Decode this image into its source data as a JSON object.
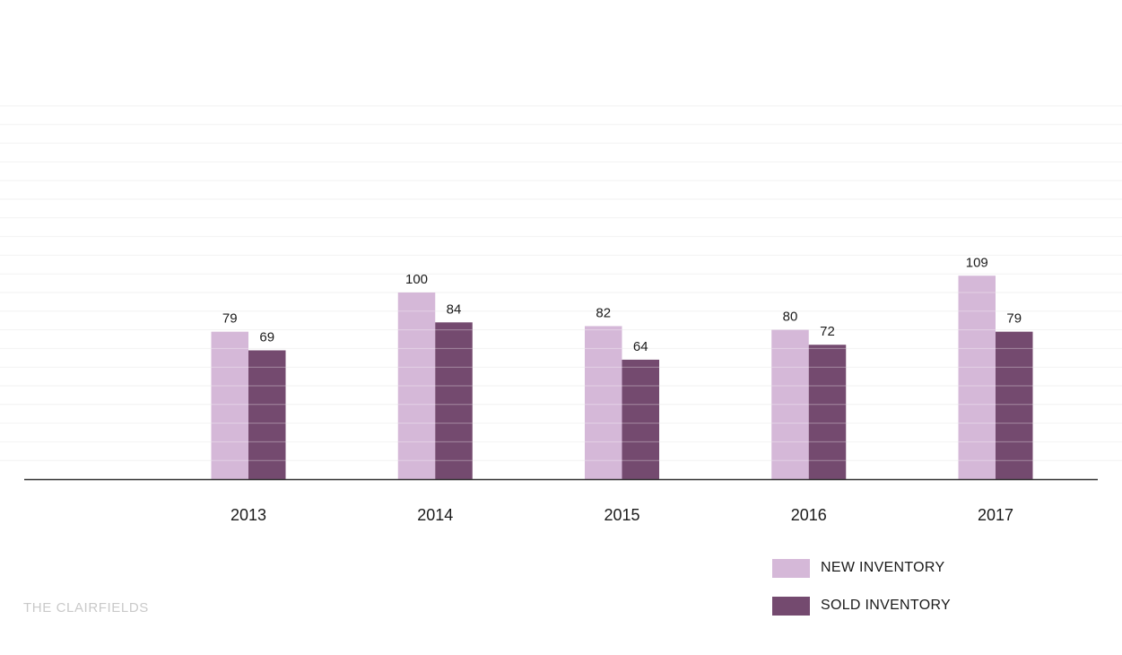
{
  "brand": "THE CLAIRFIELDS",
  "colors": {
    "new_inventory": "#d5b8d8",
    "sold_inventory": "#744a6f",
    "grid": "#f2f2f2",
    "axis": "#333333",
    "text": "#1a1a1a"
  },
  "chart_data": {
    "type": "bar",
    "categories": [
      "2013",
      "2014",
      "2015",
      "2016",
      "2017"
    ],
    "series": [
      {
        "name": "NEW INVENTORY",
        "values": [
          79,
          100,
          82,
          80,
          109
        ]
      },
      {
        "name": "SOLD INVENTORY",
        "values": [
          69,
          84,
          64,
          72,
          79
        ]
      }
    ],
    "data_labels": true,
    "grid": true,
    "ylim": [
      0,
      200
    ],
    "legend": "bottom-right"
  }
}
